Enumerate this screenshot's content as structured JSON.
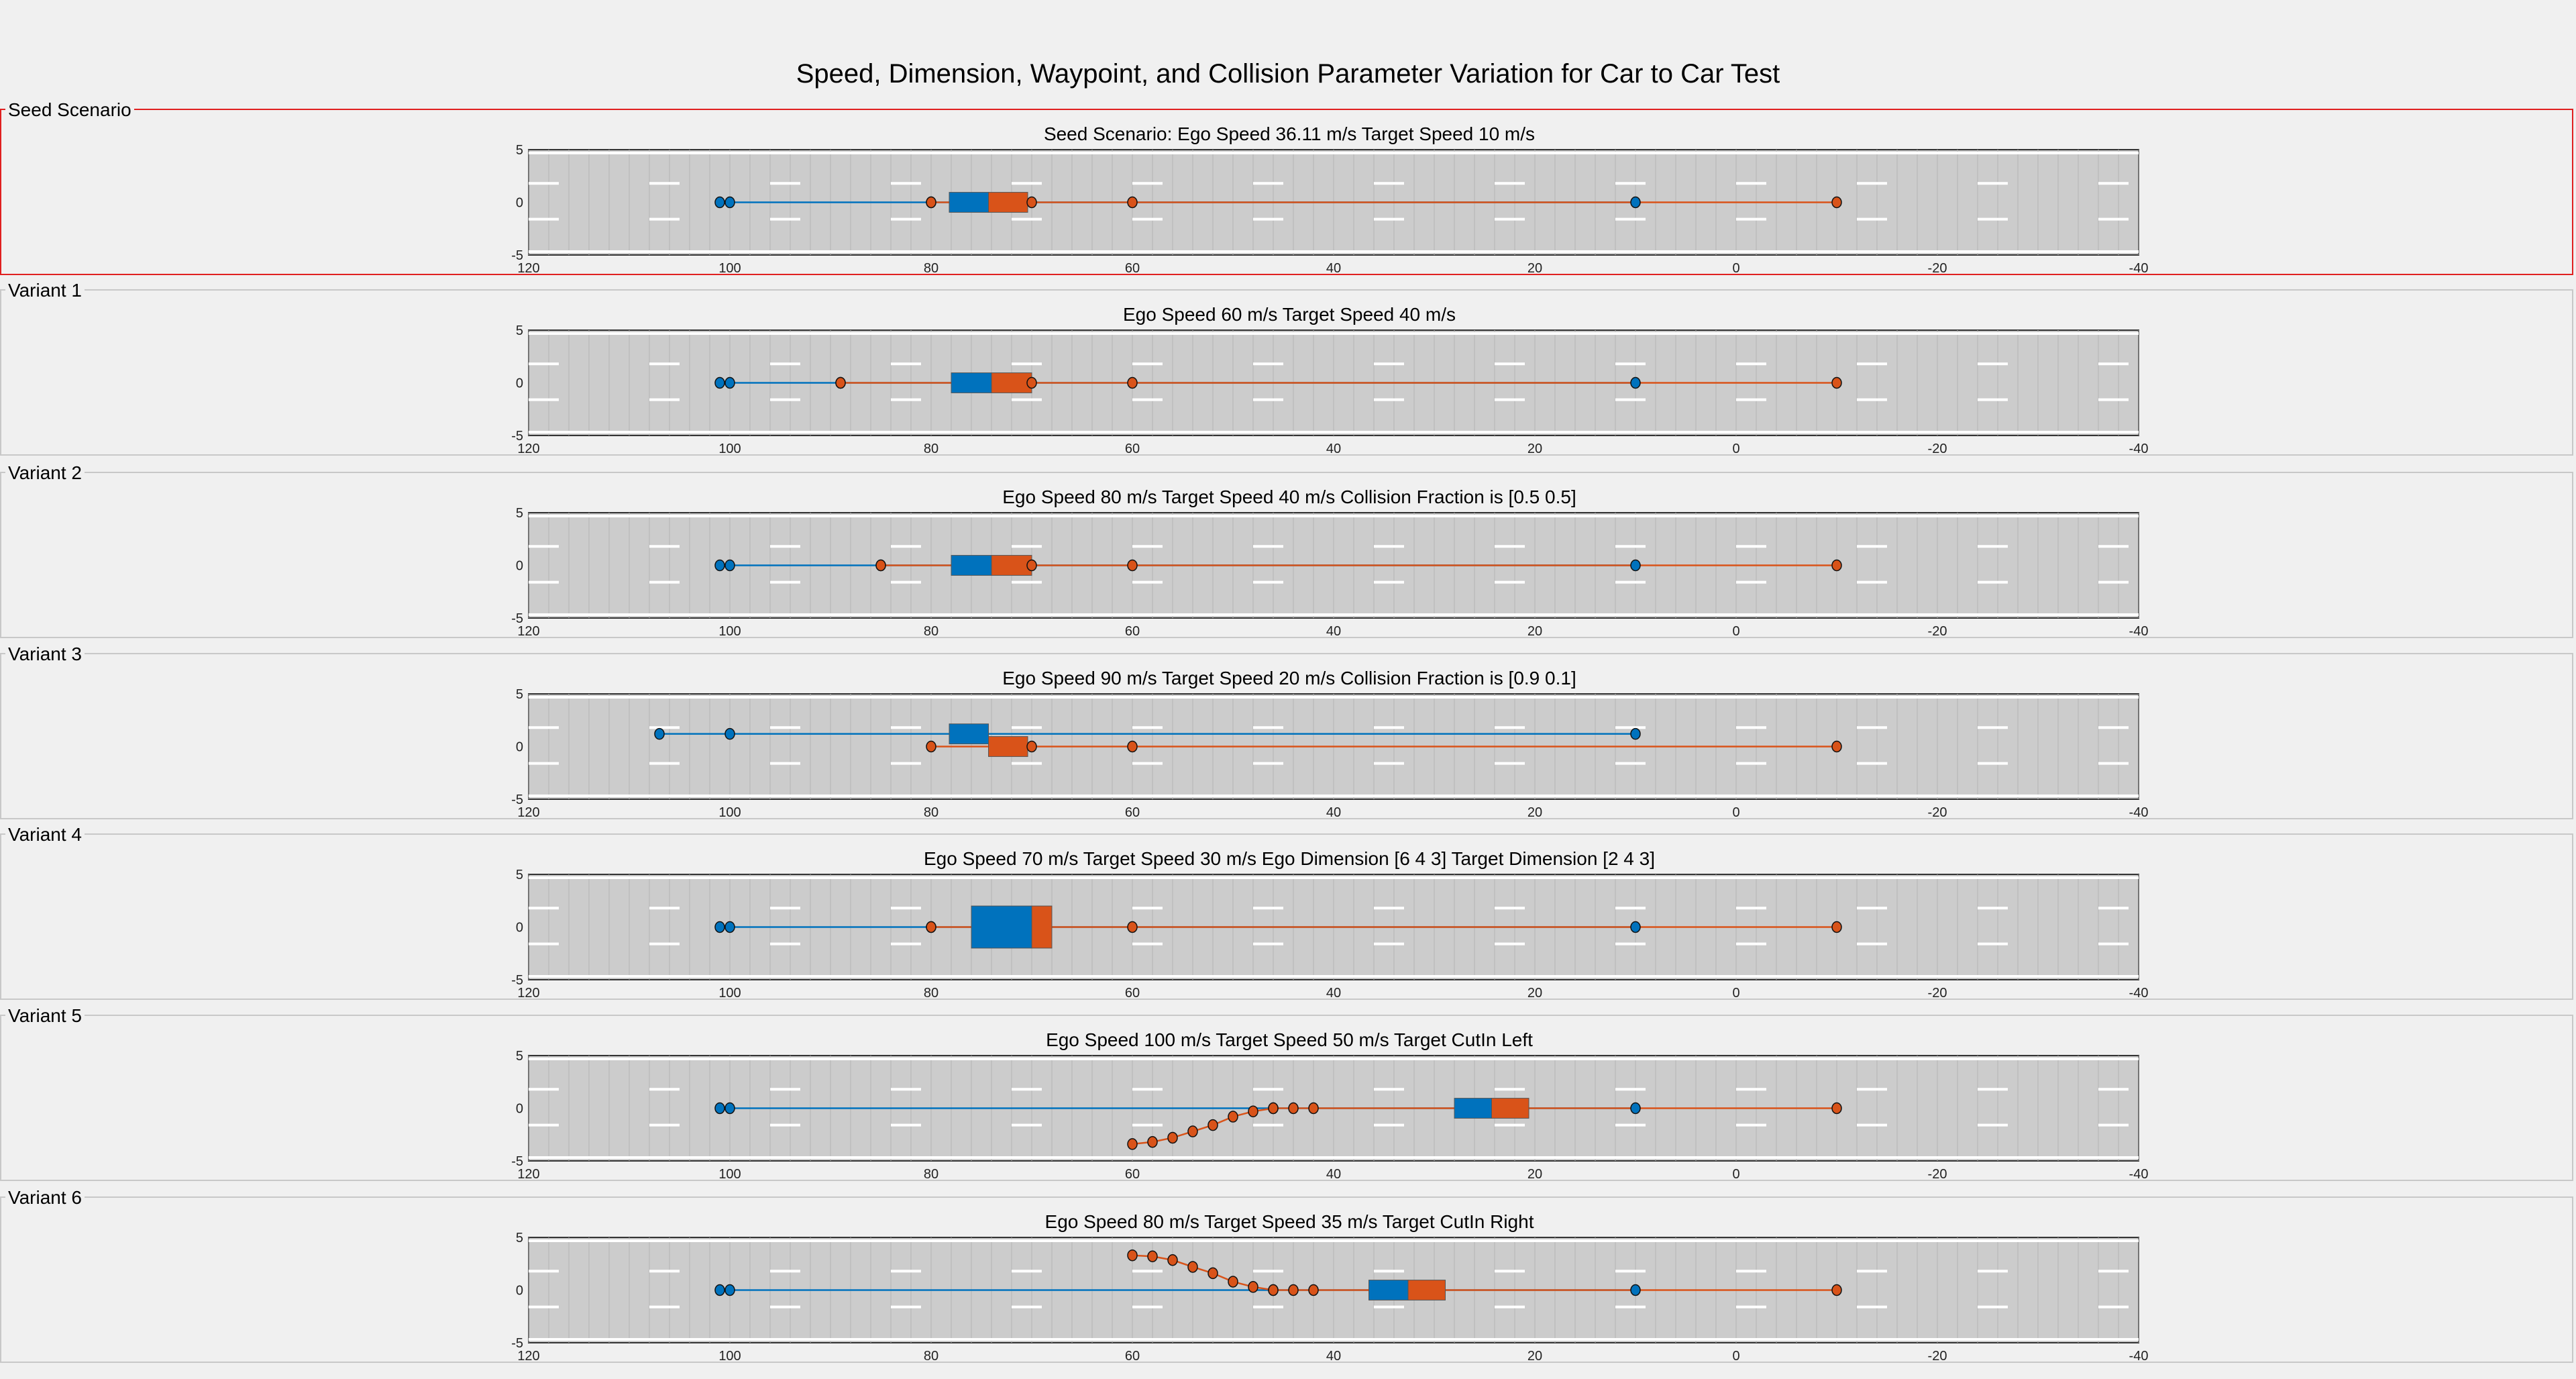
{
  "title": "Speed, Dimension, Waypoint, and Collision Parameter Variation for Car to Car Test",
  "colors": {
    "ego": "#0072bd",
    "target": "#d95319",
    "road": "#cccccc",
    "background": "#f0f0f0",
    "seed_border": "#e02020"
  },
  "chart_data": [
    {
      "type": "scatter",
      "panel_label": "Seed Scenario",
      "title": "Seed Scenario: Ego Speed 36.11 m/s Target Speed 10 m/s",
      "xlim": [
        120,
        -40
      ],
      "ylim": [
        -5,
        5
      ],
      "xticks": [
        "120",
        "100",
        "80",
        "60",
        "40",
        "20",
        "0",
        "-20",
        "-40"
      ],
      "yticks": [
        "5",
        "0",
        "-5"
      ],
      "ego_waypoints": [
        [
          101,
          0
        ],
        [
          100,
          0
        ],
        [
          80,
          0
        ],
        [
          10,
          0
        ]
      ],
      "target_waypoints": [
        [
          80,
          0
        ],
        [
          70,
          0
        ],
        [
          60,
          0
        ],
        [
          -10,
          0
        ]
      ],
      "ego_car": {
        "x_range": [
          74.3,
          78.2
        ],
        "y": 0,
        "width": 1.9
      },
      "target_car": {
        "x_range": [
          70.4,
          74.3
        ],
        "y": 0,
        "width": 1.9
      }
    },
    {
      "type": "scatter",
      "panel_label": "Variant 1",
      "title": "Ego Speed 60 m/s Target Speed 40 m/s",
      "xlim": [
        120,
        -40
      ],
      "ylim": [
        -5,
        5
      ],
      "xticks": [
        "120",
        "100",
        "80",
        "60",
        "40",
        "20",
        "0",
        "-20",
        "-40"
      ],
      "yticks": [
        "5",
        "0",
        "-5"
      ],
      "ego_waypoints": [
        [
          101,
          0
        ],
        [
          100,
          0
        ],
        [
          89,
          0
        ],
        [
          10,
          0
        ]
      ],
      "target_waypoints": [
        [
          89,
          0
        ],
        [
          70,
          0
        ],
        [
          60,
          0
        ],
        [
          -10,
          0
        ]
      ],
      "ego_car": {
        "x_range": [
          74,
          78
        ],
        "y": 0,
        "width": 1.9
      },
      "target_car": {
        "x_range": [
          70,
          74
        ],
        "y": 0,
        "width": 1.9
      }
    },
    {
      "type": "scatter",
      "panel_label": "Variant 2",
      "title": "Ego Speed 80 m/s Target Speed 40 m/s Collision Fraction is [0.5 0.5]",
      "xlim": [
        120,
        -40
      ],
      "ylim": [
        -5,
        5
      ],
      "xticks": [
        "120",
        "100",
        "80",
        "60",
        "40",
        "20",
        "0",
        "-20",
        "-40"
      ],
      "yticks": [
        "5",
        "0",
        "-5"
      ],
      "ego_waypoints": [
        [
          101,
          0
        ],
        [
          100,
          0
        ],
        [
          85,
          0
        ],
        [
          10,
          0
        ]
      ],
      "target_waypoints": [
        [
          85,
          0
        ],
        [
          70,
          0
        ],
        [
          60,
          0
        ],
        [
          -10,
          0
        ]
      ],
      "ego_car": {
        "x_range": [
          74,
          78
        ],
        "y": 0,
        "width": 1.9
      },
      "target_car": {
        "x_range": [
          70,
          74
        ],
        "y": 0,
        "width": 1.9
      }
    },
    {
      "type": "scatter",
      "panel_label": "Variant 3",
      "title": "Ego Speed 90 m/s Target Speed 20 m/s Collision Fraction is [0.9 0.1]",
      "xlim": [
        120,
        -40
      ],
      "ylim": [
        -5,
        5
      ],
      "xticks": [
        "120",
        "100",
        "80",
        "60",
        "40",
        "20",
        "0",
        "-20",
        "-40"
      ],
      "yticks": [
        "5",
        "0",
        "-5"
      ],
      "ego_waypoints": [
        [
          107,
          1.2
        ],
        [
          100,
          1.2
        ],
        [
          10,
          1.2
        ]
      ],
      "target_waypoints": [
        [
          80,
          0
        ],
        [
          70,
          0
        ],
        [
          60,
          0
        ],
        [
          -10,
          0
        ]
      ],
      "ego_car": {
        "x_range": [
          74.3,
          78.2
        ],
        "y": 1.2,
        "width": 1.9
      },
      "target_car": {
        "x_range": [
          70.4,
          74.3
        ],
        "y": 0,
        "width": 1.9
      }
    },
    {
      "type": "scatter",
      "panel_label": "Variant 4",
      "title": "Ego Speed 70 m/s Target Speed 30 m/s Ego Dimension [6 4 3] Target Dimension [2 4 3]",
      "xlim": [
        120,
        -40
      ],
      "ylim": [
        -5,
        5
      ],
      "xticks": [
        "120",
        "100",
        "80",
        "60",
        "40",
        "20",
        "0",
        "-20",
        "-40"
      ],
      "yticks": [
        "5",
        "0",
        "-5"
      ],
      "ego_waypoints": [
        [
          101,
          0
        ],
        [
          100,
          0
        ],
        [
          80,
          0
        ],
        [
          10,
          0
        ]
      ],
      "target_waypoints": [
        [
          80,
          0
        ],
        [
          60,
          0
        ],
        [
          -10,
          0
        ]
      ],
      "ego_car": {
        "x_range": [
          70,
          76
        ],
        "y": 0,
        "width": 4
      },
      "target_car": {
        "x_range": [
          68,
          70
        ],
        "y": 0,
        "width": 4
      }
    },
    {
      "type": "scatter",
      "panel_label": "Variant 5",
      "title": "Ego Speed 100 m/s Target Speed 50 m/s Target CutIn Left",
      "xlim": [
        120,
        -40
      ],
      "ylim": [
        -5,
        5
      ],
      "xticks": [
        "120",
        "100",
        "80",
        "60",
        "40",
        "20",
        "0",
        "-20",
        "-40"
      ],
      "yticks": [
        "5",
        "0",
        "-5"
      ],
      "ego_waypoints": [
        [
          101,
          0
        ],
        [
          100,
          0
        ],
        [
          46,
          0
        ],
        [
          10,
          0
        ]
      ],
      "target_waypoints": [
        [
          60,
          -3.4
        ],
        [
          58,
          -3.2
        ],
        [
          56,
          -2.8
        ],
        [
          54,
          -2.2
        ],
        [
          52,
          -1.6
        ],
        [
          50,
          -0.8
        ],
        [
          48,
          -0.3
        ],
        [
          46,
          0
        ],
        [
          44,
          0
        ],
        [
          42,
          0
        ],
        [
          -10,
          0
        ]
      ],
      "ego_car": {
        "x_range": [
          24.3,
          28
        ],
        "y": 0,
        "width": 1.9
      },
      "target_car": {
        "x_range": [
          20.6,
          24.3
        ],
        "y": 0,
        "width": 1.9
      }
    },
    {
      "type": "scatter",
      "panel_label": "Variant 6",
      "title": "Ego Speed 80 m/s Target Speed 35 m/s Target CutIn Right",
      "xlim": [
        120,
        -40
      ],
      "ylim": [
        -5,
        5
      ],
      "xticks": [
        "120",
        "100",
        "80",
        "60",
        "40",
        "20",
        "0",
        "-20",
        "-40"
      ],
      "yticks": [
        "5",
        "0",
        "-5"
      ],
      "ego_waypoints": [
        [
          101,
          0
        ],
        [
          100,
          0
        ],
        [
          46,
          0
        ],
        [
          10,
          0
        ]
      ],
      "target_waypoints": [
        [
          60,
          3.3
        ],
        [
          58,
          3.2
        ],
        [
          56,
          2.85
        ],
        [
          54,
          2.2
        ],
        [
          52,
          1.6
        ],
        [
          50,
          0.8
        ],
        [
          48,
          0.3
        ],
        [
          46,
          0
        ],
        [
          44,
          0
        ],
        [
          42,
          0
        ],
        [
          -10,
          0
        ]
      ],
      "ego_car": {
        "x_range": [
          32.6,
          36.5
        ],
        "y": 0,
        "width": 1.9
      },
      "target_car": {
        "x_range": [
          28.9,
          32.6
        ],
        "y": 0,
        "width": 1.9
      }
    }
  ]
}
